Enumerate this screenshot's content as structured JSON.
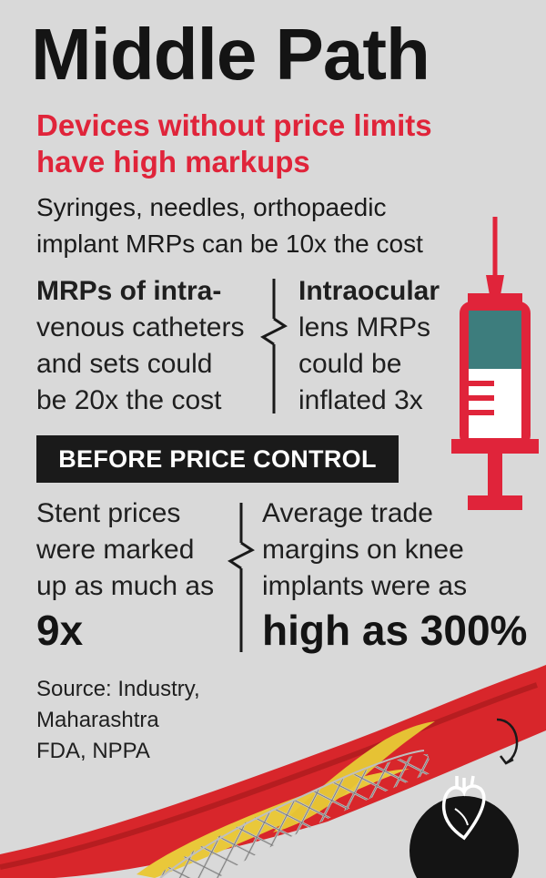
{
  "title": "Middle Path",
  "subtitle": [
    "Devices without price limits",
    "have high markups"
  ],
  "lead": [
    "Syringes, needles, orthopaedic",
    "implant MRPs can be 10x the cost"
  ],
  "left_col": {
    "lines": [
      "MRPs of intra-",
      "venous catheters",
      "and sets could",
      "be 20x the cost"
    ]
  },
  "right_col": {
    "lines": [
      "Intraocular",
      "lens MRPs",
      "could be",
      "inflated 3x"
    ]
  },
  "banner": "BEFORE PRICE CONTROL",
  "stent": {
    "lines": [
      "Stent prices",
      "were marked",
      "up as much as"
    ],
    "value": "9x"
  },
  "knee": {
    "lines": [
      "Average trade",
      "margins on knee",
      "implants were as"
    ],
    "value": "high as 300%"
  },
  "source": [
    "Source: Industry,",
    "Maharashtra",
    "FDA, NPPA"
  ],
  "icons": [
    "syringe-icon",
    "stent-artery-illustration",
    "heart-icon",
    "rotate-arrow-icon",
    "lightning-divider-icon"
  ],
  "colors": {
    "background": "#d9d9d9",
    "accent": "#e0243a",
    "syringe_fill": "#3d7d7d",
    "banner": "#1a1a1a"
  }
}
